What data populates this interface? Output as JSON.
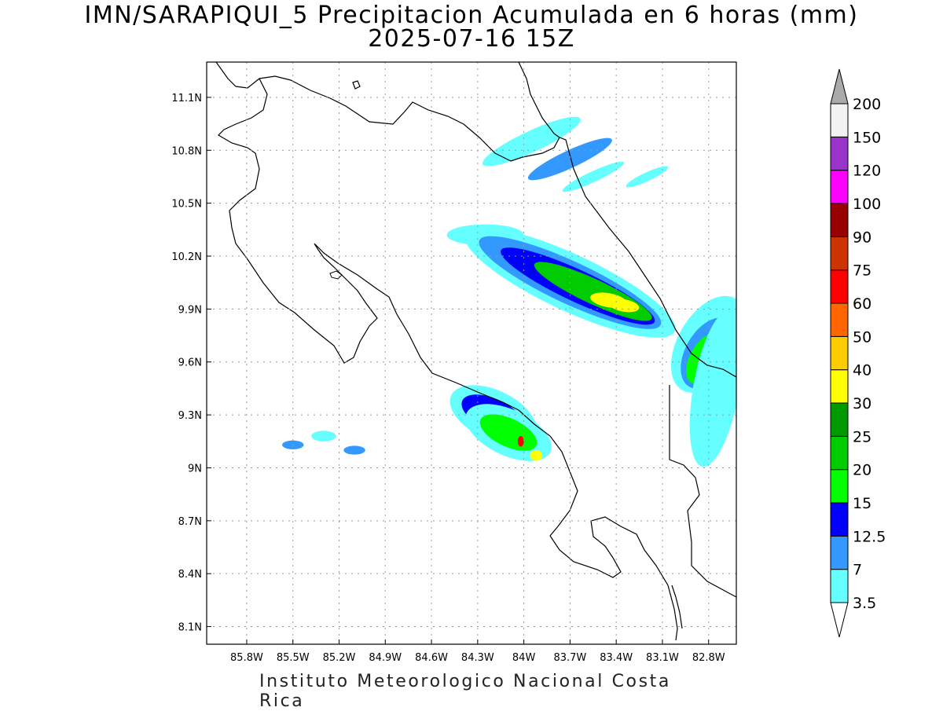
{
  "title": {
    "line1": "IMN/SARAPIQUI_5 Precipitacion Acumulada en 6 horas (mm)",
    "line2": "2025-07-16 15Z"
  },
  "footer": "Instituto Meteorologico Nacional Costa Rica",
  "map": {
    "lon_range": [
      -86.06,
      -82.62
    ],
    "lat_range": [
      8.0,
      11.3
    ],
    "lat_ticks": [
      "11.1N",
      "10.8N",
      "10.5N",
      "10.2N",
      "9.9N",
      "9.6N",
      "9.3N",
      "9N",
      "8.7N",
      "8.4N",
      "8.1N"
    ],
    "lat_values": [
      11.1,
      10.8,
      10.5,
      10.2,
      9.9,
      9.6,
      9.3,
      9.0,
      8.7,
      8.4,
      8.1
    ],
    "lon_ticks": [
      "85.8W",
      "85.5W",
      "85.2W",
      "84.9W",
      "84.6W",
      "84.3W",
      "84W",
      "83.7W",
      "83.4W",
      "83.1W",
      "82.8W"
    ],
    "lon_values": [
      -85.8,
      -85.5,
      -85.2,
      -84.9,
      -84.6,
      -84.3,
      -84.0,
      -83.7,
      -83.4,
      -83.1,
      -82.8
    ],
    "grid": "dotted"
  },
  "colorbar": {
    "units": "mm",
    "levels": [
      "3.5",
      "7",
      "12.5",
      "15",
      "20",
      "25",
      "30",
      "40",
      "50",
      "60",
      "75",
      "90",
      "100",
      "120",
      "150",
      "200"
    ],
    "colors": [
      "#ffffff",
      "#66ffff",
      "#3399ff",
      "#0000ff",
      "#00ff00",
      "#00cc00",
      "#009900",
      "#ffff00",
      "#ffcc00",
      "#ff6600",
      "#ff0000",
      "#cc3300",
      "#990000",
      "#ff00ff",
      "#9933cc",
      "#f2f2f2",
      "#aaaaaa"
    ]
  },
  "precip_cells": [
    {
      "lon": -83.95,
      "lat": 10.85,
      "level": 1,
      "rx": 0.35,
      "ry": 0.06,
      "rot": -25
    },
    {
      "lon": -83.7,
      "lat": 10.75,
      "level": 2,
      "rx": 0.3,
      "ry": 0.05,
      "rot": -25
    },
    {
      "lon": -83.55,
      "lat": 10.65,
      "level": 1,
      "rx": 0.22,
      "ry": 0.03,
      "rot": -25
    },
    {
      "lon": -83.2,
      "lat": 10.65,
      "level": 1,
      "rx": 0.15,
      "ry": 0.025,
      "rot": -25
    },
    {
      "lon": -84.25,
      "lat": 10.32,
      "level": 1,
      "rx": 0.25,
      "ry": 0.06,
      "rot": 0
    },
    {
      "lon": -83.7,
      "lat": 10.05,
      "level": 1,
      "rx": 0.75,
      "ry": 0.16,
      "rot": 25
    },
    {
      "lon": -83.7,
      "lat": 10.05,
      "level": 2,
      "rx": 0.65,
      "ry": 0.12,
      "rot": 25
    },
    {
      "lon": -83.65,
      "lat": 10.03,
      "level": 3,
      "rx": 0.55,
      "ry": 0.09,
      "rot": 25
    },
    {
      "lon": -83.55,
      "lat": 10.0,
      "level": 5,
      "rx": 0.42,
      "ry": 0.07,
      "rot": 25
    },
    {
      "lon": -83.45,
      "lat": 9.95,
      "level": 7,
      "rx": 0.12,
      "ry": 0.04,
      "rot": 10
    },
    {
      "lon": -83.35,
      "lat": 9.92,
      "level": 7,
      "rx": 0.1,
      "ry": 0.035,
      "rot": 10
    },
    {
      "lon": -82.8,
      "lat": 9.7,
      "level": 1,
      "rx": 0.2,
      "ry": 0.3,
      "rot": 30
    },
    {
      "lon": -82.8,
      "lat": 9.65,
      "level": 2,
      "rx": 0.15,
      "ry": 0.22,
      "rot": 30
    },
    {
      "lon": -82.82,
      "lat": 9.62,
      "level": 4,
      "rx": 0.1,
      "ry": 0.16,
      "rot": 30
    },
    {
      "lon": -82.75,
      "lat": 9.45,
      "level": 1,
      "rx": 0.15,
      "ry": 0.45,
      "rot": 10
    },
    {
      "lon": -84.2,
      "lat": 9.3,
      "level": 1,
      "rx": 0.3,
      "ry": 0.14,
      "rot": 25
    },
    {
      "lon": -84.2,
      "lat": 9.3,
      "level": 3,
      "rx": 0.22,
      "ry": 0.09,
      "rot": 25
    },
    {
      "lon": -84.1,
      "lat": 9.2,
      "level": 1,
      "rx": 0.3,
      "ry": 0.13,
      "rot": 25
    },
    {
      "lon": -84.1,
      "lat": 9.2,
      "level": 4,
      "rx": 0.2,
      "ry": 0.08,
      "rot": 25
    },
    {
      "lon": -84.02,
      "lat": 9.15,
      "level": 10,
      "rx": 0.02,
      "ry": 0.03,
      "rot": 0
    },
    {
      "lon": -83.92,
      "lat": 9.07,
      "level": 7,
      "rx": 0.04,
      "ry": 0.03,
      "rot": 0
    },
    {
      "lon": -85.3,
      "lat": 9.18,
      "level": 1,
      "rx": 0.08,
      "ry": 0.03,
      "rot": 0
    },
    {
      "lon": -85.5,
      "lat": 9.13,
      "level": 2,
      "rx": 0.07,
      "ry": 0.025,
      "rot": 0
    },
    {
      "lon": -85.1,
      "lat": 9.1,
      "level": 2,
      "rx": 0.07,
      "ry": 0.025,
      "rot": 0
    }
  ]
}
